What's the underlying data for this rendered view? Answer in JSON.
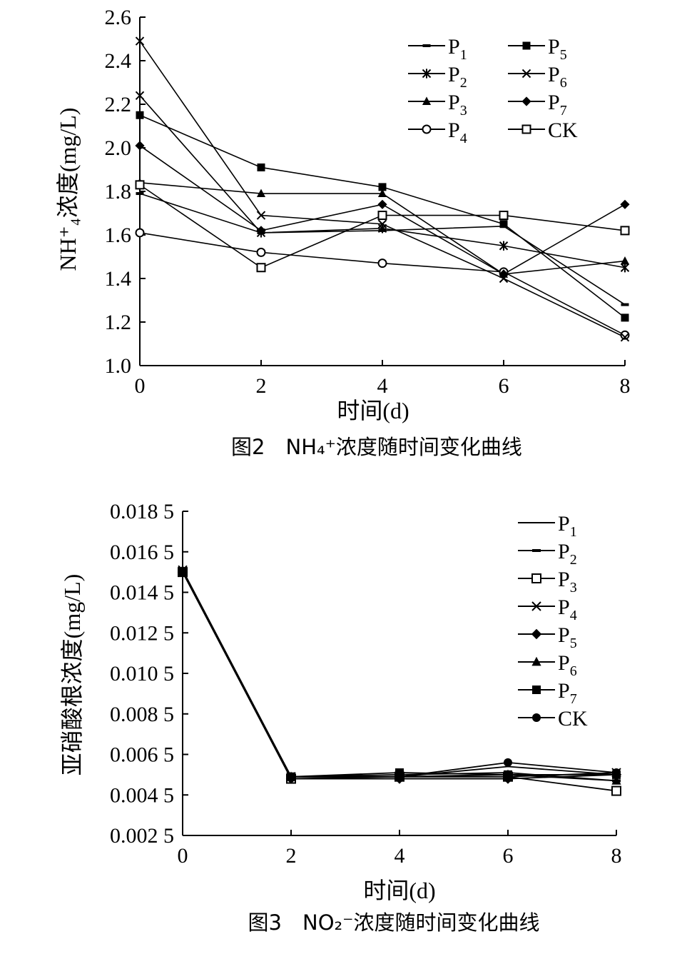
{
  "chart_data": [
    {
      "type": "line",
      "caption": "图2　NH₄⁺浓度随时间变化曲线",
      "xlabel": "时间(d)",
      "ylabel": "NH⁺₄浓度(mg/L)",
      "x": [
        0,
        2,
        4,
        6,
        8
      ],
      "xticks": [
        "0",
        "2",
        "4",
        "6",
        "8"
      ],
      "ylim": [
        1.0,
        2.6
      ],
      "yticks": [
        "1.0",
        "1.2",
        "1.4",
        "1.6",
        "1.8",
        "2.0",
        "2.2",
        "2.4",
        "2.6"
      ],
      "legend_position": "top-right",
      "series": [
        {
          "name": "P1",
          "base": "P",
          "sub": "1",
          "marker": "dash",
          "values": [
            1.79,
            1.61,
            1.62,
            1.64,
            1.28
          ]
        },
        {
          "name": "P2",
          "base": "P",
          "sub": "2",
          "marker": "star",
          "values": [
            2.24,
            1.61,
            1.63,
            1.55,
            1.45
          ]
        },
        {
          "name": "P3",
          "base": "P",
          "sub": "3",
          "marker": "triangle",
          "values": [
            1.84,
            1.79,
            1.79,
            1.42,
            1.48
          ]
        },
        {
          "name": "P4",
          "base": "P",
          "sub": "4",
          "marker": "circle",
          "values": [
            1.61,
            1.52,
            1.47,
            1.43,
            1.14
          ]
        },
        {
          "name": "P5",
          "base": "P",
          "sub": "5",
          "marker": "square",
          "values": [
            2.15,
            1.91,
            1.82,
            1.65,
            1.22
          ]
        },
        {
          "name": "P6",
          "base": "P",
          "sub": "6",
          "marker": "x",
          "values": [
            2.49,
            1.69,
            1.65,
            1.4,
            1.13
          ]
        },
        {
          "name": "P7",
          "base": "P",
          "sub": "7",
          "marker": "diamond",
          "values": [
            2.01,
            1.62,
            1.74,
            1.42,
            1.74
          ]
        },
        {
          "name": "CK",
          "base": "CK",
          "sub": "",
          "marker": "square-open",
          "values": [
            1.83,
            1.45,
            1.69,
            1.69,
            1.62
          ]
        }
      ]
    },
    {
      "type": "line",
      "caption": "图3　NO₂⁻浓度随时间变化曲线",
      "xlabel": "时间(d)",
      "ylabel": "亚硝酸根浓度(mg/L)",
      "x": [
        0,
        2,
        4,
        6,
        8
      ],
      "xticks": [
        "0",
        "2",
        "4",
        "6",
        "8"
      ],
      "ylim": [
        0.0025,
        0.0185
      ],
      "yticks": [
        "0.002 5",
        "0.004 5",
        "0.006 5",
        "0.008 5",
        "0.010 5",
        "0.012 5",
        "0.014 5",
        "0.016 5",
        "0.018 5"
      ],
      "legend_position": "top-right",
      "series": [
        {
          "name": "P1",
          "base": "P",
          "sub": "1",
          "marker": "none",
          "values": [
            0.0155,
            0.0054,
            0.0054,
            0.0059,
            0.0055
          ]
        },
        {
          "name": "P2",
          "base": "P",
          "sub": "2",
          "marker": "dash",
          "values": [
            0.0155,
            0.0054,
            0.0055,
            0.0056,
            0.0052
          ]
        },
        {
          "name": "P3",
          "base": "P",
          "sub": "3",
          "marker": "square-open",
          "values": [
            0.0155,
            0.0053,
            0.0054,
            0.0054,
            0.0047
          ]
        },
        {
          "name": "P4",
          "base": "P",
          "sub": "4",
          "marker": "x",
          "values": [
            0.0156,
            0.0054,
            0.0054,
            0.0054,
            0.0056
          ]
        },
        {
          "name": "P5",
          "base": "P",
          "sub": "5",
          "marker": "diamond",
          "values": [
            0.0155,
            0.0053,
            0.0053,
            0.0053,
            0.0055
          ]
        },
        {
          "name": "P6",
          "base": "P",
          "sub": "6",
          "marker": "triangle",
          "values": [
            0.0156,
            0.0054,
            0.0054,
            0.0055,
            0.0052
          ]
        },
        {
          "name": "P7",
          "base": "P",
          "sub": "7",
          "marker": "square",
          "values": [
            0.0155,
            0.0054,
            0.0056,
            0.0055,
            0.0055
          ]
        },
        {
          "name": "CK",
          "base": "CK",
          "sub": "",
          "marker": "circle",
          "values": [
            0.0155,
            0.0054,
            0.0054,
            0.0061,
            0.0056
          ]
        }
      ]
    }
  ]
}
